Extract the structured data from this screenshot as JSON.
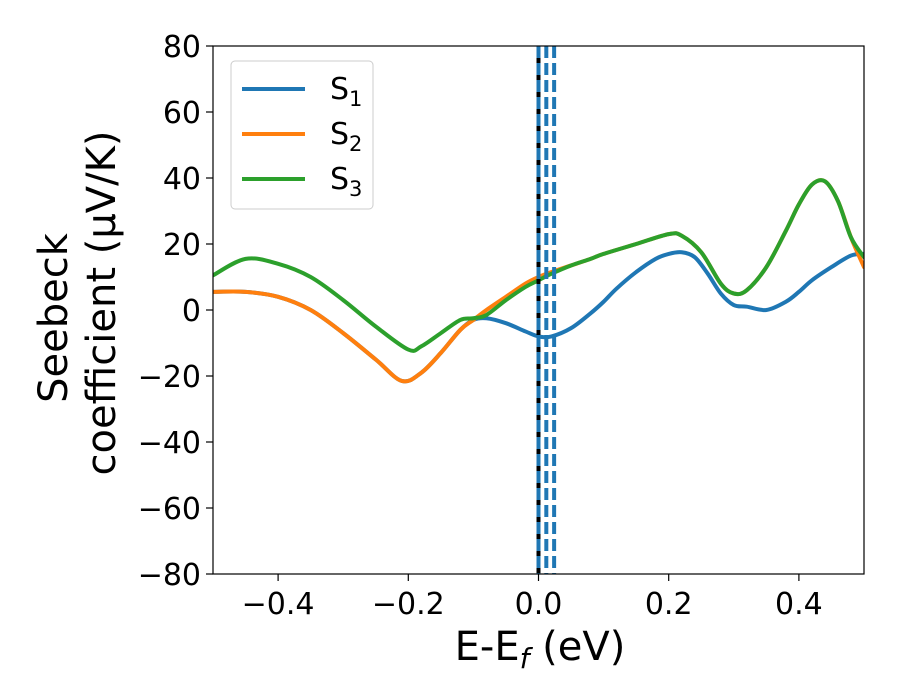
{
  "chart_data": {
    "type": "line",
    "xlabel": {
      "main": "E-E",
      "sub": "f",
      "unit": " (eV)"
    },
    "ylabel": {
      "line1": "Seebeck",
      "line2": "coefficient  (μV/K)"
    },
    "xlim": [
      -0.5,
      0.5
    ],
    "ylim": [
      -80,
      80
    ],
    "xticks": [
      -0.4,
      -0.2,
      0.0,
      0.2,
      0.4
    ],
    "xtick_labels": [
      "−0.4",
      "−0.2",
      "0.0",
      "0.2",
      "0.4"
    ],
    "yticks": [
      -80,
      -60,
      -40,
      -20,
      0,
      20,
      40,
      60,
      80
    ],
    "ytick_labels": [
      "−80",
      "−60",
      "−40",
      "−20",
      "0",
      "20",
      "40",
      "60",
      "80"
    ],
    "grid": false,
    "legend_placement": "upper-left",
    "series": [
      {
        "name": "S",
        "sub": "1",
        "color": "#1f77b4",
        "x": [
          -0.5,
          -0.45,
          -0.4,
          -0.35,
          -0.3,
          -0.25,
          -0.21,
          -0.18,
          -0.15,
          -0.12,
          -0.1,
          -0.08,
          -0.05,
          -0.02,
          0.0,
          0.02,
          0.05,
          0.08,
          0.1,
          0.12,
          0.15,
          0.18,
          0.2,
          0.22,
          0.24,
          0.26,
          0.28,
          0.3,
          0.32,
          0.35,
          0.38,
          0.4,
          0.42,
          0.45,
          0.48,
          0.5
        ],
        "y": [
          5.5,
          5.5,
          4,
          0,
          -7,
          -15,
          -21.5,
          -19,
          -13,
          -6,
          -3,
          -2.5,
          -4,
          -6.5,
          -8,
          -8,
          -5.5,
          -1,
          2.5,
          6.5,
          11.5,
          15.5,
          17,
          17.5,
          16,
          11,
          5,
          1.5,
          1,
          0,
          2.5,
          5.5,
          9,
          13,
          16.5,
          17
        ]
      },
      {
        "name": "S",
        "sub": "2",
        "color": "#ff7f0e",
        "x": [
          -0.5,
          -0.45,
          -0.4,
          -0.35,
          -0.3,
          -0.25,
          -0.21,
          -0.18,
          -0.15,
          -0.12,
          -0.1,
          -0.08,
          -0.05,
          -0.02,
          0.0,
          0.02,
          0.05,
          0.08,
          0.1,
          0.15,
          0.2,
          0.22,
          0.25,
          0.28,
          0.3,
          0.32,
          0.35,
          0.38,
          0.4,
          0.42,
          0.44,
          0.46,
          0.48,
          0.5
        ],
        "y": [
          5.5,
          5.5,
          4,
          0,
          -7,
          -15,
          -21.5,
          -19,
          -13,
          -6,
          -3,
          0,
          4,
          8,
          10,
          11.5,
          13.5,
          15.5,
          17,
          20,
          23,
          22.5,
          17.5,
          8,
          5,
          6,
          13,
          24,
          32,
          38,
          39,
          33,
          22,
          13
        ]
      },
      {
        "name": "S",
        "sub": "3",
        "color": "#2ca02c",
        "x": [
          -0.5,
          -0.45,
          -0.4,
          -0.35,
          -0.3,
          -0.25,
          -0.2,
          -0.18,
          -0.15,
          -0.12,
          -0.1,
          -0.08,
          -0.05,
          -0.02,
          0.0,
          0.02,
          0.05,
          0.08,
          0.1,
          0.15,
          0.2,
          0.22,
          0.25,
          0.28,
          0.3,
          0.32,
          0.35,
          0.38,
          0.4,
          0.42,
          0.44,
          0.46,
          0.48,
          0.5
        ],
        "y": [
          10.5,
          15.5,
          14,
          10,
          3,
          -5,
          -12,
          -11,
          -7,
          -3,
          -2.5,
          -1.5,
          3,
          7,
          9,
          11,
          13.5,
          15.5,
          17,
          20,
          23,
          22.5,
          17.5,
          8,
          5,
          6,
          13,
          24,
          32,
          38,
          39,
          33,
          22,
          16
        ]
      }
    ],
    "vlines": [
      {
        "x": 0.0,
        "color": "#000000",
        "style": "solid"
      },
      {
        "x": 0.0,
        "color": "#1f77b4",
        "style": "dashed"
      },
      {
        "x": 0.012,
        "color": "#1f77b4",
        "style": "dashed"
      },
      {
        "x": 0.024,
        "color": "#1f77b4",
        "style": "dashed"
      }
    ]
  }
}
